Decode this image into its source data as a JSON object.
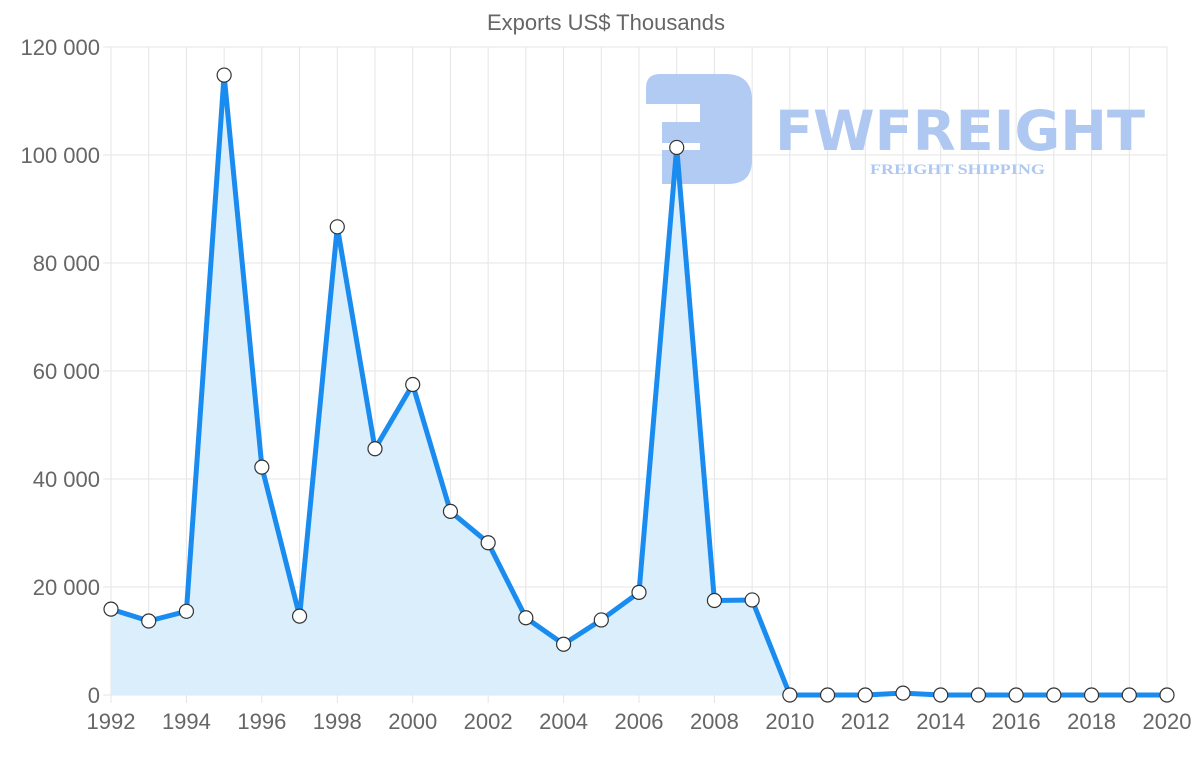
{
  "chart_data": {
    "type": "area",
    "title": "Exports US$ Thousands",
    "xlabel": "",
    "ylabel": "",
    "x": [
      1992,
      1993,
      1994,
      1995,
      1996,
      1997,
      1998,
      1999,
      2000,
      2001,
      2002,
      2003,
      2004,
      2005,
      2006,
      2007,
      2008,
      2009,
      2010,
      2011,
      2012,
      2013,
      2014,
      2015,
      2016,
      2017,
      2018,
      2019,
      2020
    ],
    "series": [
      {
        "name": "Exports US$ Thousands",
        "values": [
          15900,
          13700,
          15500,
          114800,
          42200,
          14600,
          86700,
          45600,
          57500,
          34000,
          28200,
          14300,
          9400,
          13900,
          19000,
          101400,
          17500,
          17600,
          0,
          0,
          0,
          350,
          0,
          0,
          0,
          0,
          0,
          0,
          0
        ]
      }
    ],
    "ylim": [
      0,
      120000
    ],
    "xlim": [
      1992,
      2020
    ],
    "y_ticks": [
      "0",
      "20 000",
      "40 000",
      "60 000",
      "80 000",
      "100 000",
      "120 000"
    ],
    "y_tick_values": [
      0,
      20000,
      40000,
      60000,
      80000,
      100000,
      120000
    ],
    "x_ticks": [
      "1992",
      "1994",
      "1996",
      "1998",
      "2000",
      "2002",
      "2004",
      "2006",
      "2008",
      "2010",
      "2012",
      "2014",
      "2016",
      "2018",
      "2020"
    ],
    "grid": true,
    "legend": "none",
    "colors": {
      "line": "#1a8cf0",
      "fill": "#dbeefc",
      "marker_fill": "#ffffff",
      "marker_stroke": "#333333"
    }
  },
  "watermark": {
    "brand": "FWFREIGHT",
    "tagline": "FREIGHT SHIPPING",
    "color": "#aec8f2"
  }
}
